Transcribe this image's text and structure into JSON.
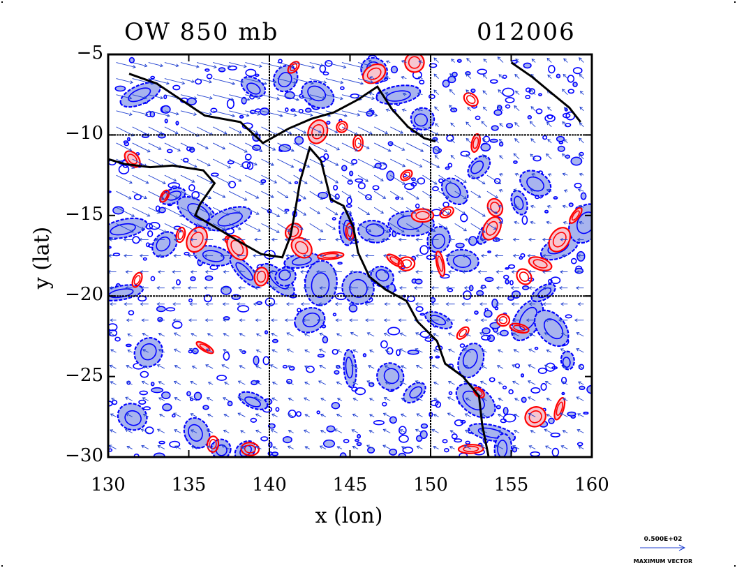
{
  "title_left": "OW 850 mb",
  "title_right": "012006",
  "axes": {
    "xlabel": "x (lon)",
    "ylabel": "y (lat)",
    "xlim": [
      130,
      160
    ],
    "ylim": [
      -30,
      -5
    ],
    "xticks": [
      "130",
      "135",
      "140",
      "145",
      "150",
      "155",
      "160"
    ],
    "yticks": [
      "−5",
      "−10",
      "−15",
      "−20",
      "−25",
      "−30"
    ],
    "grid_lines_lon": [
      140,
      150
    ],
    "grid_lines_lat": [
      -10,
      -20
    ]
  },
  "legend": {
    "magnitude": "0.500E+02",
    "caption": "MAXIMUM VECTOR"
  },
  "colors": {
    "negative_contour": "#0000ff",
    "negative_fill": "#a8b4ee",
    "positive_contour": "#ff0000",
    "positive_fill": "#f6c6d0",
    "coastline": "#000000",
    "vectors": "#1f3fd0"
  },
  "coastline": [
    [
      [
        131.3,
        -6.2
      ],
      [
        133.0,
        -6.8
      ],
      [
        134.5,
        -7.8
      ],
      [
        136.0,
        -8.8
      ],
      [
        138.2,
        -9.2
      ],
      [
        139.6,
        -10.5
      ],
      [
        141.2,
        -9.6
      ],
      [
        142.6,
        -9.0
      ],
      [
        144.0,
        -8.6
      ],
      [
        145.5,
        -7.8
      ],
      [
        146.7,
        -7.0
      ],
      [
        147.6,
        -8.4
      ],
      [
        148.6,
        -9.5
      ],
      [
        149.6,
        -10.2
      ],
      [
        150.3,
        -10.4
      ]
    ],
    [
      [
        130.0,
        -11.5
      ],
      [
        131.0,
        -11.8
      ],
      [
        132.6,
        -12.0
      ],
      [
        134.0,
        -11.9
      ],
      [
        135.9,
        -12.2
      ],
      [
        136.6,
        -13.0
      ],
      [
        135.7,
        -14.3
      ],
      [
        135.4,
        -15.0
      ],
      [
        136.6,
        -15.7
      ],
      [
        138.1,
        -16.6
      ],
      [
        139.5,
        -17.4
      ],
      [
        140.8,
        -17.6
      ],
      [
        141.3,
        -16.3
      ],
      [
        141.6,
        -14.7
      ],
      [
        141.9,
        -12.9
      ],
      [
        142.5,
        -10.8
      ],
      [
        143.2,
        -11.6
      ],
      [
        143.8,
        -14.0
      ],
      [
        144.6,
        -14.4
      ],
      [
        145.2,
        -15.7
      ],
      [
        145.5,
        -17.3
      ],
      [
        146.2,
        -18.8
      ],
      [
        147.2,
        -19.6
      ],
      [
        148.5,
        -20.3
      ],
      [
        149.2,
        -21.6
      ],
      [
        150.4,
        -22.8
      ],
      [
        150.9,
        -24.2
      ],
      [
        152.0,
        -25.0
      ],
      [
        153.0,
        -26.2
      ],
      [
        153.2,
        -28.0
      ],
      [
        153.6,
        -30.0
      ]
    ],
    [
      [
        155.0,
        -5.5
      ],
      [
        156.3,
        -6.4
      ],
      [
        157.5,
        -7.4
      ],
      [
        158.6,
        -8.3
      ],
      [
        159.3,
        -9.2
      ]
    ]
  ],
  "vorticity_areas": {
    "negative": [
      [
        146.5,
        -6.0
      ],
      [
        148.0,
        -7.5
      ],
      [
        149.5,
        -9.0
      ],
      [
        134.0,
        -13.8
      ],
      [
        135.5,
        -14.8
      ],
      [
        137.5,
        -15.2
      ],
      [
        136.5,
        -17.5
      ],
      [
        138.5,
        -18.5
      ],
      [
        140.5,
        -19.0
      ],
      [
        142.0,
        -17.8
      ],
      [
        144.8,
        -15.8
      ],
      [
        146.5,
        -16.0
      ],
      [
        147.0,
        -18.8
      ],
      [
        148.8,
        -15.5
      ],
      [
        150.5,
        -16.5
      ],
      [
        152.0,
        -17.8
      ],
      [
        153.5,
        -16.0
      ],
      [
        155.5,
        -14.2
      ],
      [
        156.5,
        -13.0
      ],
      [
        158.0,
        -17.0
      ],
      [
        159.6,
        -15.5
      ],
      [
        151.5,
        -13.5
      ],
      [
        153.0,
        -12.0
      ],
      [
        150.5,
        -21.5
      ],
      [
        152.5,
        -24.0
      ],
      [
        152.8,
        -26.5
      ],
      [
        153.8,
        -28.5
      ],
      [
        154.5,
        -29.5
      ],
      [
        135.5,
        -28.5
      ],
      [
        137.0,
        -29.5
      ],
      [
        138.5,
        -29.6
      ],
      [
        130.8,
        -19.8
      ],
      [
        132.5,
        -23.5
      ],
      [
        141.0,
        -18.8
      ],
      [
        143.2,
        -19.2
      ],
      [
        145.5,
        -19.5
      ],
      [
        139.0,
        -7.0
      ],
      [
        141.0,
        -6.5
      ],
      [
        143.0,
        -7.5
      ],
      [
        156.0,
        -21.5
      ],
      [
        157.0,
        -19.8
      ],
      [
        132.0,
        -7.5
      ],
      [
        131.0,
        -15.8
      ],
      [
        133.5,
        -16.8
      ],
      [
        145.0,
        -24.5
      ],
      [
        147.5,
        -25.0
      ],
      [
        157.5,
        -22.0
      ],
      [
        158.5,
        -24.0
      ],
      [
        131.5,
        -27.5
      ],
      [
        139.0,
        -26.5
      ],
      [
        142.5,
        -21.5
      ],
      [
        149.0,
        -26.0
      ]
    ],
    "positive": [
      [
        134.5,
        -16.2
      ],
      [
        135.5,
        -16.5
      ],
      [
        141.5,
        -16.0
      ],
      [
        142.0,
        -17.0
      ],
      [
        147.8,
        -17.8
      ],
      [
        148.5,
        -18.0
      ],
      [
        150.6,
        -18.0
      ],
      [
        152.5,
        -7.8
      ],
      [
        152.8,
        -10.5
      ],
      [
        158.0,
        -16.5
      ],
      [
        159.0,
        -15.0
      ],
      [
        143.8,
        -17.5
      ],
      [
        139.5,
        -18.8
      ],
      [
        137.5,
        -16.5
      ],
      [
        138.0,
        -17.0
      ],
      [
        145.0,
        -16.0
      ],
      [
        155.8,
        -18.8
      ],
      [
        156.8,
        -18.0
      ],
      [
        145.5,
        -10.5
      ],
      [
        153.0,
        -26.0
      ],
      [
        136.5,
        -29.2
      ],
      [
        138.8,
        -29.5
      ],
      [
        154.5,
        -21.5
      ],
      [
        155.5,
        -22.0
      ],
      [
        146.5,
        -6.2
      ],
      [
        149.0,
        -5.5
      ],
      [
        156.5,
        -27.5
      ],
      [
        158.0,
        -27.0
      ],
      [
        131.5,
        -11.5
      ],
      [
        133.5,
        -13.8
      ],
      [
        154.0,
        -14.5
      ],
      [
        151.0,
        -14.8
      ],
      [
        148.5,
        -12.5
      ],
      [
        149.5,
        -15.0
      ],
      [
        143.0,
        -9.8
      ],
      [
        144.5,
        -9.5
      ],
      [
        141.5,
        -5.8
      ],
      [
        152.5,
        -29.5
      ],
      [
        153.8,
        -15.8
      ],
      [
        136.0,
        -23.2
      ],
      [
        131.8,
        -19.0
      ],
      [
        152.0,
        -22.3
      ]
    ]
  },
  "wind_field": [
    {
      "lon": [
        130,
        146
      ],
      "lat": [
        -5,
        -9
      ],
      "u": 12,
      "v": -3
    },
    {
      "lon": [
        130,
        150
      ],
      "lat": [
        -9,
        -16
      ],
      "u": 10,
      "v": -5
    },
    {
      "lon": [
        140,
        154
      ],
      "lat": [
        -12,
        -17
      ],
      "u": 8,
      "v": -5
    },
    {
      "lon": [
        150,
        160
      ],
      "lat": [
        -5,
        -12
      ],
      "u": -3,
      "v": 3
    },
    {
      "lon": [
        130,
        160
      ],
      "lat": [
        -16,
        -22
      ],
      "u": -5,
      "v": 0
    },
    {
      "lon": [
        130,
        160
      ],
      "lat": [
        -22,
        -30
      ],
      "u": -4,
      "v": 2
    }
  ]
}
